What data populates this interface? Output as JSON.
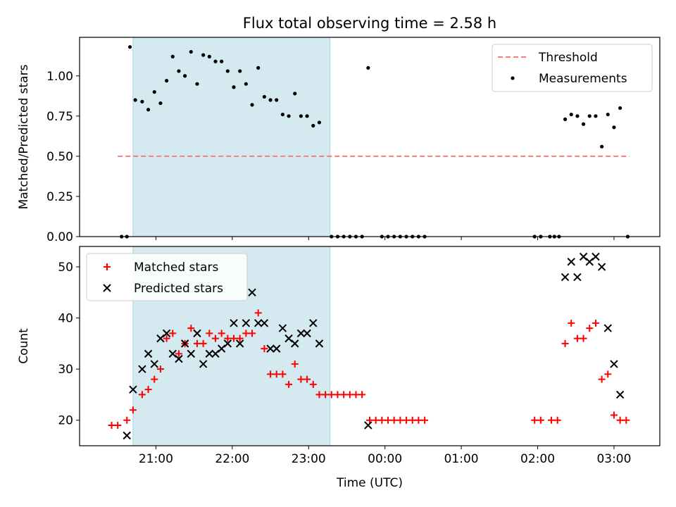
{
  "chart_data": [
    {
      "type": "scatter",
      "title": "Flux total observing time = 2.58 h",
      "xlabel": "",
      "ylabel": "Matched/Predicted stars",
      "xlim_hours": [
        20.0,
        27.6
      ],
      "ylim": [
        0.0,
        1.24
      ],
      "yticks": [
        "0.00",
        "0.25",
        "0.50",
        "0.75",
        "1.00"
      ],
      "highlight_span_hours": [
        20.7,
        23.28
      ],
      "highlight_color": "#d4eaf0",
      "threshold": {
        "name": "Threshold",
        "value": 0.5,
        "x_range_hours": [
          20.5,
          27.2
        ],
        "color": "#f28080"
      },
      "series": [
        {
          "name": "Measurements",
          "color": "#000000",
          "marker": "dot",
          "points": [
            [
              20.55,
              0.0
            ],
            [
              20.62,
              0.0
            ],
            [
              20.66,
              1.18
            ],
            [
              20.73,
              0.85
            ],
            [
              20.82,
              0.84
            ],
            [
              20.9,
              0.79
            ],
            [
              20.98,
              0.9
            ],
            [
              21.06,
              0.83
            ],
            [
              21.14,
              0.97
            ],
            [
              21.22,
              1.12
            ],
            [
              21.3,
              1.03
            ],
            [
              21.38,
              1.0
            ],
            [
              21.46,
              1.15
            ],
            [
              21.54,
              0.95
            ],
            [
              21.62,
              1.13
            ],
            [
              21.7,
              1.12
            ],
            [
              21.78,
              1.09
            ],
            [
              21.86,
              1.09
            ],
            [
              21.94,
              1.03
            ],
            [
              22.02,
              0.93
            ],
            [
              22.1,
              1.03
            ],
            [
              22.18,
              0.95
            ],
            [
              22.26,
              0.82
            ],
            [
              22.34,
              1.05
            ],
            [
              22.42,
              0.87
            ],
            [
              22.5,
              0.85
            ],
            [
              22.58,
              0.85
            ],
            [
              22.66,
              0.76
            ],
            [
              22.74,
              0.75
            ],
            [
              22.82,
              0.89
            ],
            [
              22.9,
              0.75
            ],
            [
              22.98,
              0.75
            ],
            [
              23.06,
              0.69
            ],
            [
              23.14,
              0.71
            ],
            [
              23.3,
              0.0
            ],
            [
              23.38,
              0.0
            ],
            [
              23.46,
              0.0
            ],
            [
              23.54,
              0.0
            ],
            [
              23.62,
              0.0
            ],
            [
              23.7,
              0.0
            ],
            [
              23.78,
              1.05
            ],
            [
              23.96,
              0.0
            ],
            [
              24.04,
              0.0
            ],
            [
              24.12,
              0.0
            ],
            [
              24.2,
              0.0
            ],
            [
              24.28,
              0.0
            ],
            [
              24.36,
              0.0
            ],
            [
              24.44,
              0.0
            ],
            [
              24.52,
              0.0
            ],
            [
              25.96,
              0.0
            ],
            [
              26.04,
              0.0
            ],
            [
              26.16,
              0.0
            ],
            [
              26.22,
              0.0
            ],
            [
              26.28,
              0.0
            ],
            [
              26.36,
              0.73
            ],
            [
              26.44,
              0.76
            ],
            [
              26.52,
              0.75
            ],
            [
              26.6,
              0.7
            ],
            [
              26.68,
              0.75
            ],
            [
              26.76,
              0.75
            ],
            [
              26.84,
              0.56
            ],
            [
              26.92,
              0.76
            ],
            [
              27.0,
              0.68
            ],
            [
              27.08,
              0.8
            ],
            [
              27.18,
              0.0
            ]
          ]
        }
      ],
      "legend_placement": "top-right"
    },
    {
      "type": "scatter",
      "title": "",
      "xlabel": "Time (UTC)",
      "ylabel": "Count",
      "xlim_hours": [
        20.0,
        27.6
      ],
      "ylim": [
        15.0,
        54.0
      ],
      "yticks": [
        "20",
        "30",
        "40",
        "50"
      ],
      "xtick_hours": [
        21,
        22,
        23,
        24,
        25,
        26,
        27
      ],
      "xtick_labels": [
        "21:00",
        "22:00",
        "23:00",
        "00:00",
        "01:00",
        "02:00",
        "03:00"
      ],
      "highlight_span_hours": [
        20.7,
        23.28
      ],
      "highlight_color": "#d4eaf0",
      "series": [
        {
          "name": "Matched stars",
          "color": "#ff0000",
          "marker": "plus",
          "points": [
            [
              20.42,
              19
            ],
            [
              20.5,
              19
            ],
            [
              20.62,
              20
            ],
            [
              20.7,
              22
            ],
            [
              20.82,
              25
            ],
            [
              20.9,
              26
            ],
            [
              20.98,
              28
            ],
            [
              21.06,
              30
            ],
            [
              21.14,
              36
            ],
            [
              21.22,
              37
            ],
            [
              21.3,
              33
            ],
            [
              21.38,
              35
            ],
            [
              21.46,
              38
            ],
            [
              21.54,
              35
            ],
            [
              21.62,
              35
            ],
            [
              21.7,
              37
            ],
            [
              21.78,
              36
            ],
            [
              21.86,
              37
            ],
            [
              21.94,
              36
            ],
            [
              22.02,
              36
            ],
            [
              22.1,
              36
            ],
            [
              22.18,
              37
            ],
            [
              22.26,
              37
            ],
            [
              22.34,
              41
            ],
            [
              22.42,
              34
            ],
            [
              22.5,
              29
            ],
            [
              22.58,
              29
            ],
            [
              22.66,
              29
            ],
            [
              22.74,
              27
            ],
            [
              22.82,
              31
            ],
            [
              22.9,
              28
            ],
            [
              22.98,
              28
            ],
            [
              23.06,
              27
            ],
            [
              23.14,
              25
            ],
            [
              23.22,
              25
            ],
            [
              23.3,
              25
            ],
            [
              23.38,
              25
            ],
            [
              23.46,
              25
            ],
            [
              23.54,
              25
            ],
            [
              23.62,
              25
            ],
            [
              23.7,
              25
            ],
            [
              23.8,
              20
            ],
            [
              23.88,
              20
            ],
            [
              23.96,
              20
            ],
            [
              24.04,
              20
            ],
            [
              24.12,
              20
            ],
            [
              24.2,
              20
            ],
            [
              24.28,
              20
            ],
            [
              24.36,
              20
            ],
            [
              24.44,
              20
            ],
            [
              24.52,
              20
            ],
            [
              25.96,
              20
            ],
            [
              26.04,
              20
            ],
            [
              26.18,
              20
            ],
            [
              26.26,
              20
            ],
            [
              26.36,
              35
            ],
            [
              26.44,
              39
            ],
            [
              26.52,
              36
            ],
            [
              26.6,
              36
            ],
            [
              26.68,
              38
            ],
            [
              26.76,
              39
            ],
            [
              26.84,
              28
            ],
            [
              26.92,
              29
            ],
            [
              27.0,
              21
            ],
            [
              27.08,
              20
            ],
            [
              27.16,
              20
            ]
          ]
        },
        {
          "name": "Predicted stars",
          "color": "#000000",
          "marker": "x",
          "points": [
            [
              20.62,
              17
            ],
            [
              20.7,
              26
            ],
            [
              20.82,
              30
            ],
            [
              20.9,
              33
            ],
            [
              20.98,
              31
            ],
            [
              21.06,
              36
            ],
            [
              21.14,
              37
            ],
            [
              21.22,
              33
            ],
            [
              21.3,
              32
            ],
            [
              21.38,
              35
            ],
            [
              21.46,
              33
            ],
            [
              21.54,
              37
            ],
            [
              21.62,
              31
            ],
            [
              21.7,
              33
            ],
            [
              21.78,
              33
            ],
            [
              21.86,
              34
            ],
            [
              21.94,
              35
            ],
            [
              22.02,
              39
            ],
            [
              22.1,
              35
            ],
            [
              22.18,
              39
            ],
            [
              22.26,
              45
            ],
            [
              22.34,
              39
            ],
            [
              22.42,
              39
            ],
            [
              22.5,
              34
            ],
            [
              22.58,
              34
            ],
            [
              22.66,
              38
            ],
            [
              22.74,
              36
            ],
            [
              22.82,
              35
            ],
            [
              22.9,
              37
            ],
            [
              22.98,
              37
            ],
            [
              23.06,
              39
            ],
            [
              23.14,
              35
            ],
            [
              23.78,
              19
            ],
            [
              26.36,
              48
            ],
            [
              26.44,
              51
            ],
            [
              26.52,
              48
            ],
            [
              26.6,
              52
            ],
            [
              26.68,
              51
            ],
            [
              26.76,
              52
            ],
            [
              26.84,
              50
            ],
            [
              26.92,
              38
            ],
            [
              27.0,
              31
            ],
            [
              27.08,
              25
            ]
          ]
        }
      ],
      "legend_placement": "top-left"
    }
  ]
}
